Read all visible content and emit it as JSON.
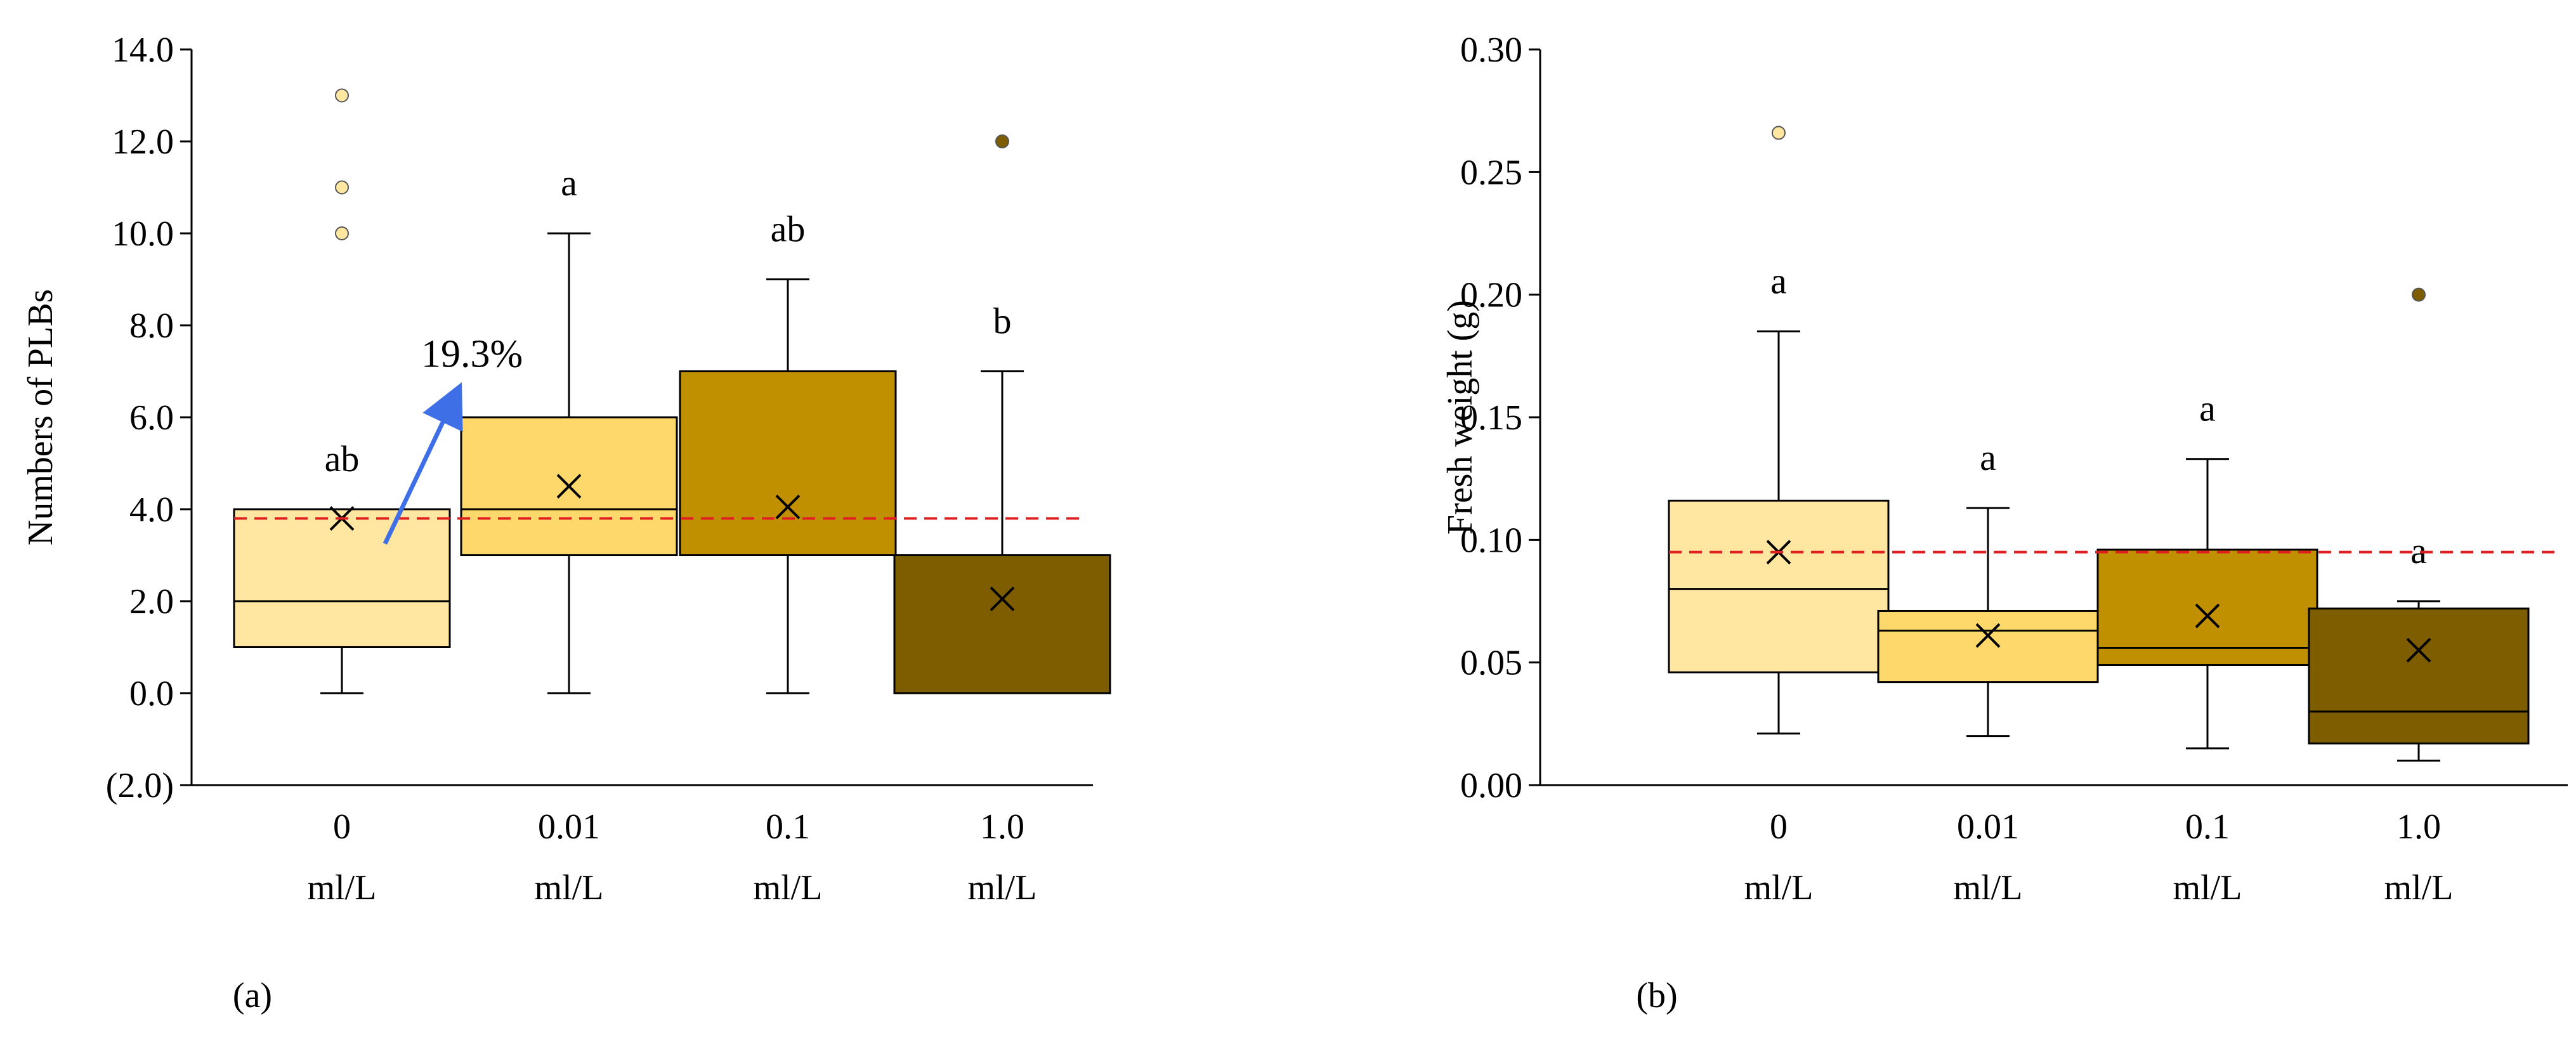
{
  "colors": {
    "box_lightest": "#FFE7A2",
    "box_light": "#FED86A",
    "box_mid": "#C09000",
    "box_dark": "#7D5D00",
    "reference_line": "#E02020",
    "arrow": "#3F6FE6",
    "axis": "#000000"
  },
  "chart_data": [
    {
      "type": "box",
      "panel_label": "(a)",
      "ylabel": "Numbers of PLBs",
      "ylim": [
        -2.0,
        14.0
      ],
      "yticks": [
        -2.0,
        0.0,
        2.0,
        4.0,
        6.0,
        8.0,
        10.0,
        12.0,
        14.0
      ],
      "ytick_labels": [
        "(2.0)",
        "0.0",
        "2.0",
        "4.0",
        "6.0",
        "8.0",
        "10.0",
        "12.0",
        "14.0"
      ],
      "categories": [
        {
          "value": "0",
          "unit": "ml/L"
        },
        {
          "value": "0.01",
          "unit": "ml/L"
        },
        {
          "value": "0.1",
          "unit": "ml/L"
        },
        {
          "value": "1.0",
          "unit": "ml/L"
        }
      ],
      "boxes": [
        {
          "whisker_low": 0.0,
          "q1": 1.0,
          "median": 2.0,
          "q3": 4.0,
          "whisker_high": 4.0,
          "mean": 3.8,
          "outliers": [
            10.0,
            11.0,
            13.0
          ],
          "letter": "ab",
          "color_key": "box_lightest"
        },
        {
          "whisker_low": 0.0,
          "q1": 3.0,
          "median": 4.0,
          "q3": 6.0,
          "whisker_high": 10.0,
          "mean": 4.5,
          "outliers": [],
          "letter": "a",
          "color_key": "box_light"
        },
        {
          "whisker_low": 0.0,
          "q1": 3.0,
          "median": 3.0,
          "q3": 7.0,
          "whisker_high": 9.0,
          "mean": 4.05,
          "outliers": [],
          "letter": "ab",
          "color_key": "box_mid"
        },
        {
          "whisker_low": 0.0,
          "q1": 0.0,
          "median": 0.0,
          "q3": 3.0,
          "whisker_high": 7.0,
          "mean": 2.05,
          "outliers": [
            12.0
          ],
          "letter": "b",
          "color_key": "box_dark"
        }
      ],
      "reference_line": 3.8,
      "annotation": {
        "text": "19.3%",
        "from_category": 0,
        "to_category": 1
      }
    },
    {
      "type": "box",
      "panel_label": "(b)",
      "ylabel": "Fresh weight (g)",
      "ylim": [
        0.0,
        0.3
      ],
      "yticks": [
        0.0,
        0.05,
        0.1,
        0.15,
        0.2,
        0.25,
        0.3
      ],
      "ytick_labels": [
        "0.00",
        "0.05",
        "0.10",
        "0.15",
        "0.20",
        "0.25",
        "0.30"
      ],
      "categories": [
        {
          "value": "0",
          "unit": "ml/L"
        },
        {
          "value": "0.01",
          "unit": "ml/L"
        },
        {
          "value": "0.1",
          "unit": "ml/L"
        },
        {
          "value": "1.0",
          "unit": "ml/L"
        }
      ],
      "boxes": [
        {
          "whisker_low": 0.021,
          "q1": 0.046,
          "median": 0.08,
          "q3": 0.116,
          "whisker_high": 0.185,
          "mean": 0.095,
          "outliers": [
            0.266
          ],
          "letter": "a",
          "color_key": "box_lightest"
        },
        {
          "whisker_low": 0.02,
          "q1": 0.042,
          "median": 0.063,
          "q3": 0.071,
          "whisker_high": 0.113,
          "mean": 0.061,
          "outliers": [],
          "letter": "a",
          "color_key": "box_light"
        },
        {
          "whisker_low": 0.015,
          "q1": 0.049,
          "median": 0.056,
          "q3": 0.096,
          "whisker_high": 0.133,
          "mean": 0.069,
          "outliers": [],
          "letter": "a",
          "color_key": "box_mid"
        },
        {
          "whisker_low": 0.01,
          "q1": 0.017,
          "median": 0.03,
          "q3": 0.072,
          "whisker_high": 0.075,
          "mean": 0.055,
          "outliers": [
            0.2
          ],
          "letter": "a",
          "color_key": "box_dark"
        }
      ],
      "reference_line": 0.095
    }
  ]
}
